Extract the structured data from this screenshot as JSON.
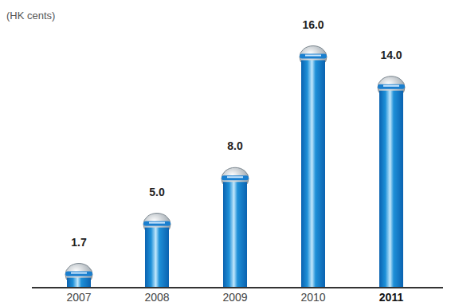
{
  "chart_data": {
    "type": "bar",
    "y_label": "(HK cents)",
    "categories": [
      "2007",
      "2008",
      "2009",
      "2010",
      "2011"
    ],
    "values": [
      1.7,
      5,
      8,
      16,
      14
    ],
    "value_labels": [
      "1.7",
      "5.0",
      "8.0",
      "16.0",
      "14.0"
    ],
    "color": "#1e90d8",
    "ylim": [
      0,
      16.5
    ],
    "data_labels": true,
    "tick_labels": "x",
    "grid": false
  }
}
